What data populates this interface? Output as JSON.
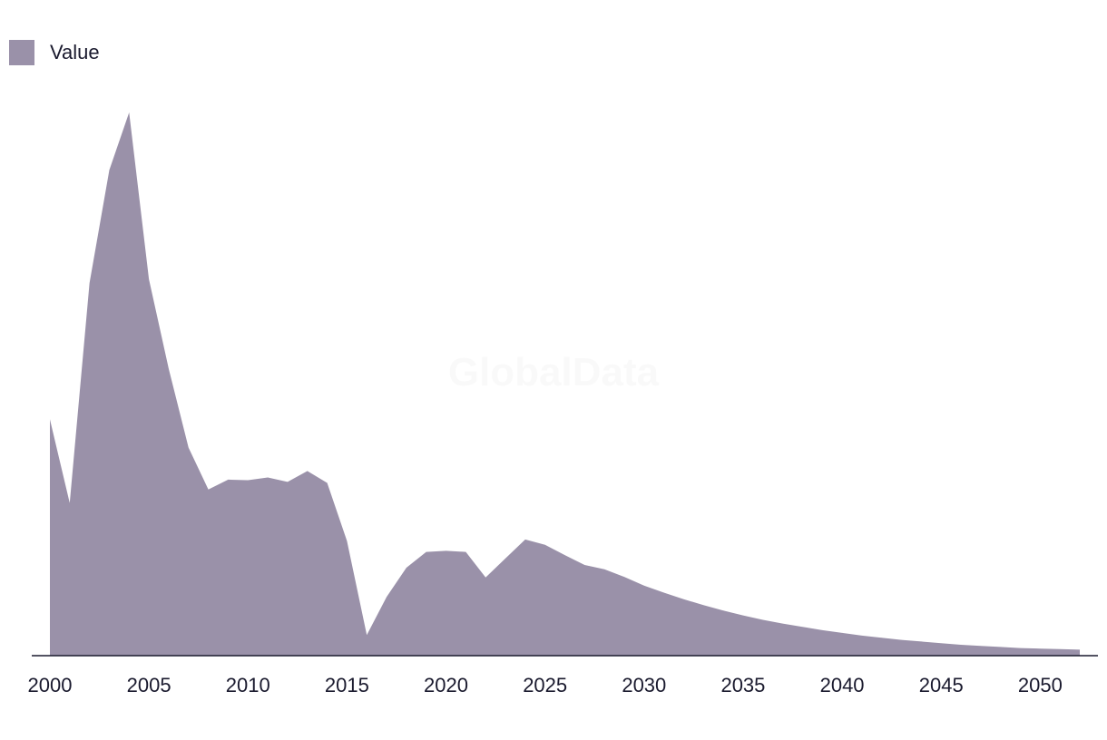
{
  "legend": {
    "label": "Value",
    "color": "#9a91a9"
  },
  "watermark": "GlobalData",
  "chart_data": {
    "type": "area",
    "title": "",
    "xlabel": "",
    "ylabel": "",
    "legend_position": "top-left",
    "grid": false,
    "xlim": [
      2000,
      2052
    ],
    "ylim": [
      0,
      100
    ],
    "x_ticks": [
      2000,
      2005,
      2010,
      2015,
      2020,
      2025,
      2030,
      2035,
      2040,
      2045,
      2050
    ],
    "series": [
      {
        "name": "Value",
        "color": "#9a91a9",
        "x": [
          2000,
          2001,
          2002,
          2003,
          2004,
          2005,
          2006,
          2007,
          2008,
          2009,
          2010,
          2011,
          2012,
          2013,
          2014,
          2015,
          2016,
          2017,
          2018,
          2019,
          2020,
          2021,
          2022,
          2023,
          2024,
          2025,
          2026,
          2027,
          2028,
          2029,
          2030,
          2031,
          2032,
          2033,
          2034,
          2035,
          2036,
          2037,
          2038,
          2039,
          2040,
          2041,
          2042,
          2043,
          2044,
          2045,
          2046,
          2047,
          2048,
          2049,
          2050,
          2051,
          2052
        ],
        "values": [
          43.5,
          28.1,
          68.6,
          89.4,
          100,
          69.3,
          52.8,
          38.3,
          30.6,
          32.4,
          32.3,
          32.8,
          32.0,
          34.0,
          31.8,
          21.1,
          3.8,
          10.8,
          16.2,
          19.1,
          19.3,
          19.1,
          14.4,
          17.9,
          21.4,
          20.4,
          18.5,
          16.7,
          15.9,
          14.5,
          12.9,
          11.6,
          10.4,
          9.3,
          8.3,
          7.4,
          6.6,
          5.9,
          5.3,
          4.7,
          4.2,
          3.7,
          3.3,
          2.9,
          2.6,
          2.3,
          2.0,
          1.8,
          1.6,
          1.4,
          1.3,
          1.2,
          1.1
        ]
      }
    ]
  }
}
